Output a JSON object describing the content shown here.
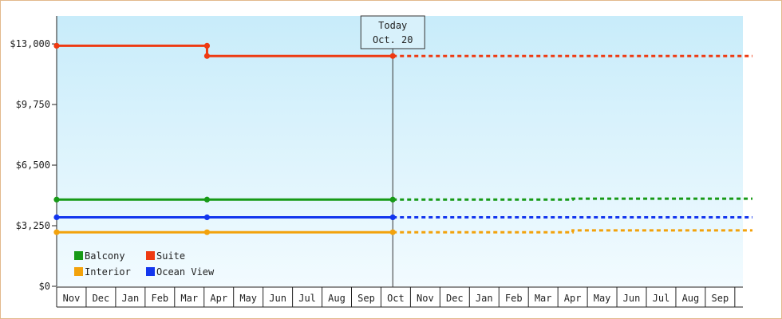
{
  "chart_data": {
    "type": "line",
    "x_ticks": [
      "Nov",
      "Dec",
      "Jan",
      "Feb",
      "Mar",
      "Apr",
      "May",
      "Jun",
      "Jul",
      "Aug",
      "Sep",
      "Oct",
      "Nov",
      "Dec",
      "Jan",
      "Feb",
      "Mar",
      "Apr",
      "May",
      "Jun",
      "Jul",
      "Aug",
      "Sep"
    ],
    "ylim": [
      0,
      14500
    ],
    "y_ticks": [
      0,
      3250,
      6500,
      9750,
      13000
    ],
    "y_tick_labels": [
      "$0",
      "$3,250",
      "$6,500",
      "$9,750",
      "$13,000"
    ],
    "today": {
      "line1": "Today",
      "line2": "Oct. 20",
      "x": 11.4
    },
    "legend_position": "bottom-left",
    "background_gradient": [
      "#c8ecfa",
      "#f2fbff"
    ],
    "series": [
      {
        "name": "Suite",
        "color": "#ee3a12",
        "points": [
          [
            0,
            12900
          ],
          [
            5.1,
            12900
          ],
          [
            5.1,
            12350
          ],
          [
            11.4,
            12350
          ]
        ],
        "projection": [
          [
            11.4,
            12350
          ],
          [
            23.6,
            12350
          ]
        ]
      },
      {
        "name": "Balcony",
        "color": "#179a17",
        "points": [
          [
            0,
            4650
          ],
          [
            5.1,
            4650
          ],
          [
            11.4,
            4650
          ]
        ],
        "projection": [
          [
            11.4,
            4650
          ],
          [
            17.5,
            4650
          ],
          [
            17.5,
            4700
          ],
          [
            23.6,
            4700
          ]
        ]
      },
      {
        "name": "Ocean View",
        "color": "#1336ee",
        "points": [
          [
            0,
            3700
          ],
          [
            5.1,
            3700
          ],
          [
            11.4,
            3700
          ]
        ],
        "projection": [
          [
            11.4,
            3700
          ],
          [
            23.6,
            3700
          ]
        ]
      },
      {
        "name": "Interior",
        "color": "#f2a20c",
        "points": [
          [
            0,
            2900
          ],
          [
            5.1,
            2900
          ],
          [
            11.4,
            2900
          ]
        ],
        "projection": [
          [
            11.4,
            2900
          ],
          [
            17.5,
            2900
          ],
          [
            17.5,
            3000
          ],
          [
            23.6,
            3000
          ]
        ]
      }
    ],
    "legend": [
      {
        "name": "Balcony",
        "color": "#179a17"
      },
      {
        "name": "Suite",
        "color": "#ee3a12"
      },
      {
        "name": "Interior",
        "color": "#f2a20c"
      },
      {
        "name": "Ocean View",
        "color": "#1336ee"
      }
    ]
  }
}
